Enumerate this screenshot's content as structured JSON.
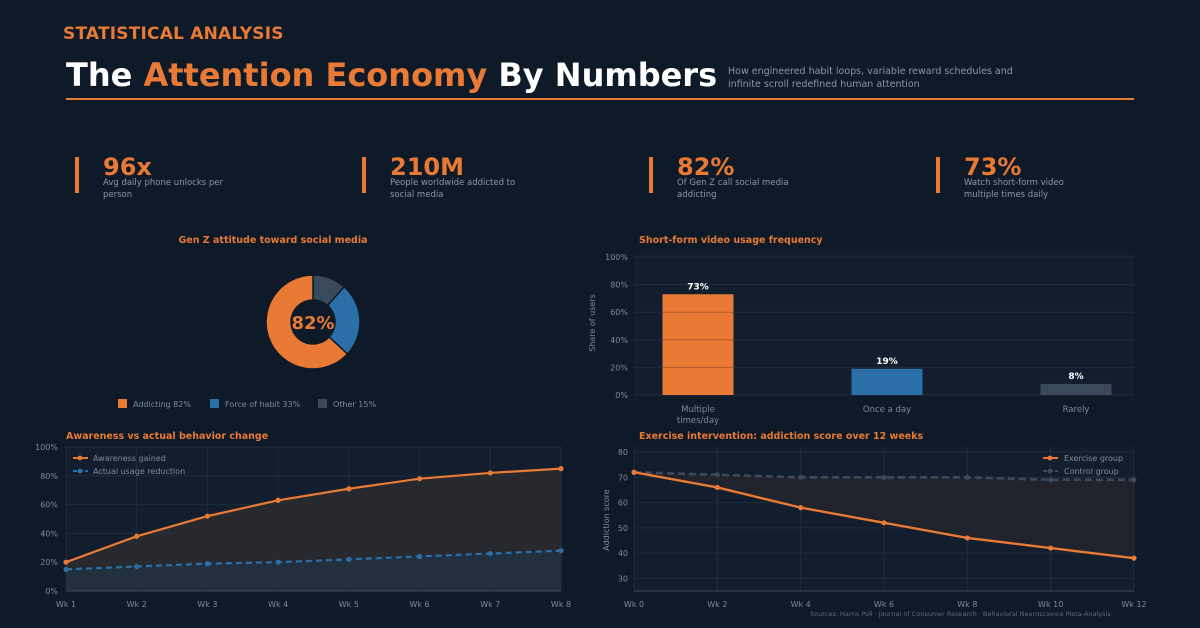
{
  "header": {
    "eyebrow": "STATISTICAL ANALYSIS",
    "title_pre": "The ",
    "title_highlight": "Attention Economy",
    "title_post": " By Numbers",
    "subtitle": "How engineered habit loops, variable reward schedules and infinite scroll redefined human attention"
  },
  "stats": [
    {
      "value": "96x",
      "label": "Avg daily phone unlocks per person"
    },
    {
      "value": "210M",
      "label": "People worldwide addicted to social media"
    },
    {
      "value": "82%",
      "label": "Of Gen Z call social media addicting"
    },
    {
      "value": "73%",
      "label": "Watch short-form video multiple times daily"
    }
  ],
  "colors": {
    "accent": "#e87a35",
    "blue": "#2a6fa8",
    "gray": "#3a4a5c"
  },
  "chart_data": [
    {
      "type": "pie",
      "title": "Gen Z attitude toward social media",
      "center_label": "82%",
      "slices": [
        {
          "label": "Addicting",
          "value_label": "82%",
          "value": 82,
          "color": "#e87a35"
        },
        {
          "label": "Force of habit",
          "value_label": "33%",
          "value": 33,
          "color": "#2a6fa8"
        },
        {
          "label": "Other",
          "value_label": "15%",
          "value": 15,
          "color": "#3a4a5c"
        }
      ],
      "legend": "bottom"
    },
    {
      "type": "bar",
      "title": "Short-form video usage frequency",
      "ylabel": "Share of users",
      "categories": [
        "Multiple times/day",
        "Once a day",
        "Rarely"
      ],
      "values": [
        73,
        19,
        8
      ],
      "data_labels": [
        "73%",
        "19%",
        "8%"
      ],
      "colors": [
        "#e87a35",
        "#2a6fa8",
        "#3a4a5c"
      ],
      "ylim": [
        0,
        100
      ],
      "yticks": [
        "0%",
        "20%",
        "40%",
        "60%",
        "80%",
        "100%"
      ],
      "grid": true
    },
    {
      "type": "line",
      "title": "Awareness vs actual behavior change",
      "x": [
        "Wk 1",
        "Wk 2",
        "Wk 3",
        "Wk 4",
        "Wk 5",
        "Wk 6",
        "Wk 7",
        "Wk 8"
      ],
      "series": [
        {
          "name": "Awareness gained",
          "values": [
            20,
            38,
            52,
            63,
            71,
            78,
            82,
            85
          ],
          "color": "#e87a35",
          "dashed": false
        },
        {
          "name": "Actual usage reduction",
          "values": [
            15,
            17,
            19,
            20,
            22,
            24,
            26,
            28
          ],
          "color": "#2a6fa8",
          "dashed": true
        }
      ],
      "ylim": [
        0,
        100
      ],
      "yticks": [
        "0%",
        "20%",
        "40%",
        "60%",
        "80%",
        "100%"
      ],
      "legend": "top-left",
      "grid": true
    },
    {
      "type": "line",
      "title": "Exercise intervention: addiction score over 12 weeks",
      "ylabel": "Addiction score",
      "x": [
        "Wk 0",
        "Wk 2",
        "Wk 4",
        "Wk 6",
        "Wk 8",
        "Wk 10",
        "Wk 12"
      ],
      "series": [
        {
          "name": "Exercise group",
          "values": [
            72,
            66,
            58,
            52,
            46,
            42,
            38
          ],
          "color": "#e87a35",
          "dashed": false
        },
        {
          "name": "Control group",
          "values": [
            72,
            71,
            70,
            70,
            70,
            69,
            69
          ],
          "color": "#3a4a5c",
          "dashed": true
        }
      ],
      "ylim": [
        25,
        82
      ],
      "yticks": [
        "30",
        "40",
        "50",
        "60",
        "70",
        "80"
      ],
      "ytick_values": [
        30,
        40,
        50,
        60,
        70,
        80
      ],
      "legend": "top-right",
      "grid": true
    }
  ],
  "sources": "Sources: Harris Poll · Journal of Consumer Research · Behavioral Neuroscience Meta-Analysis"
}
